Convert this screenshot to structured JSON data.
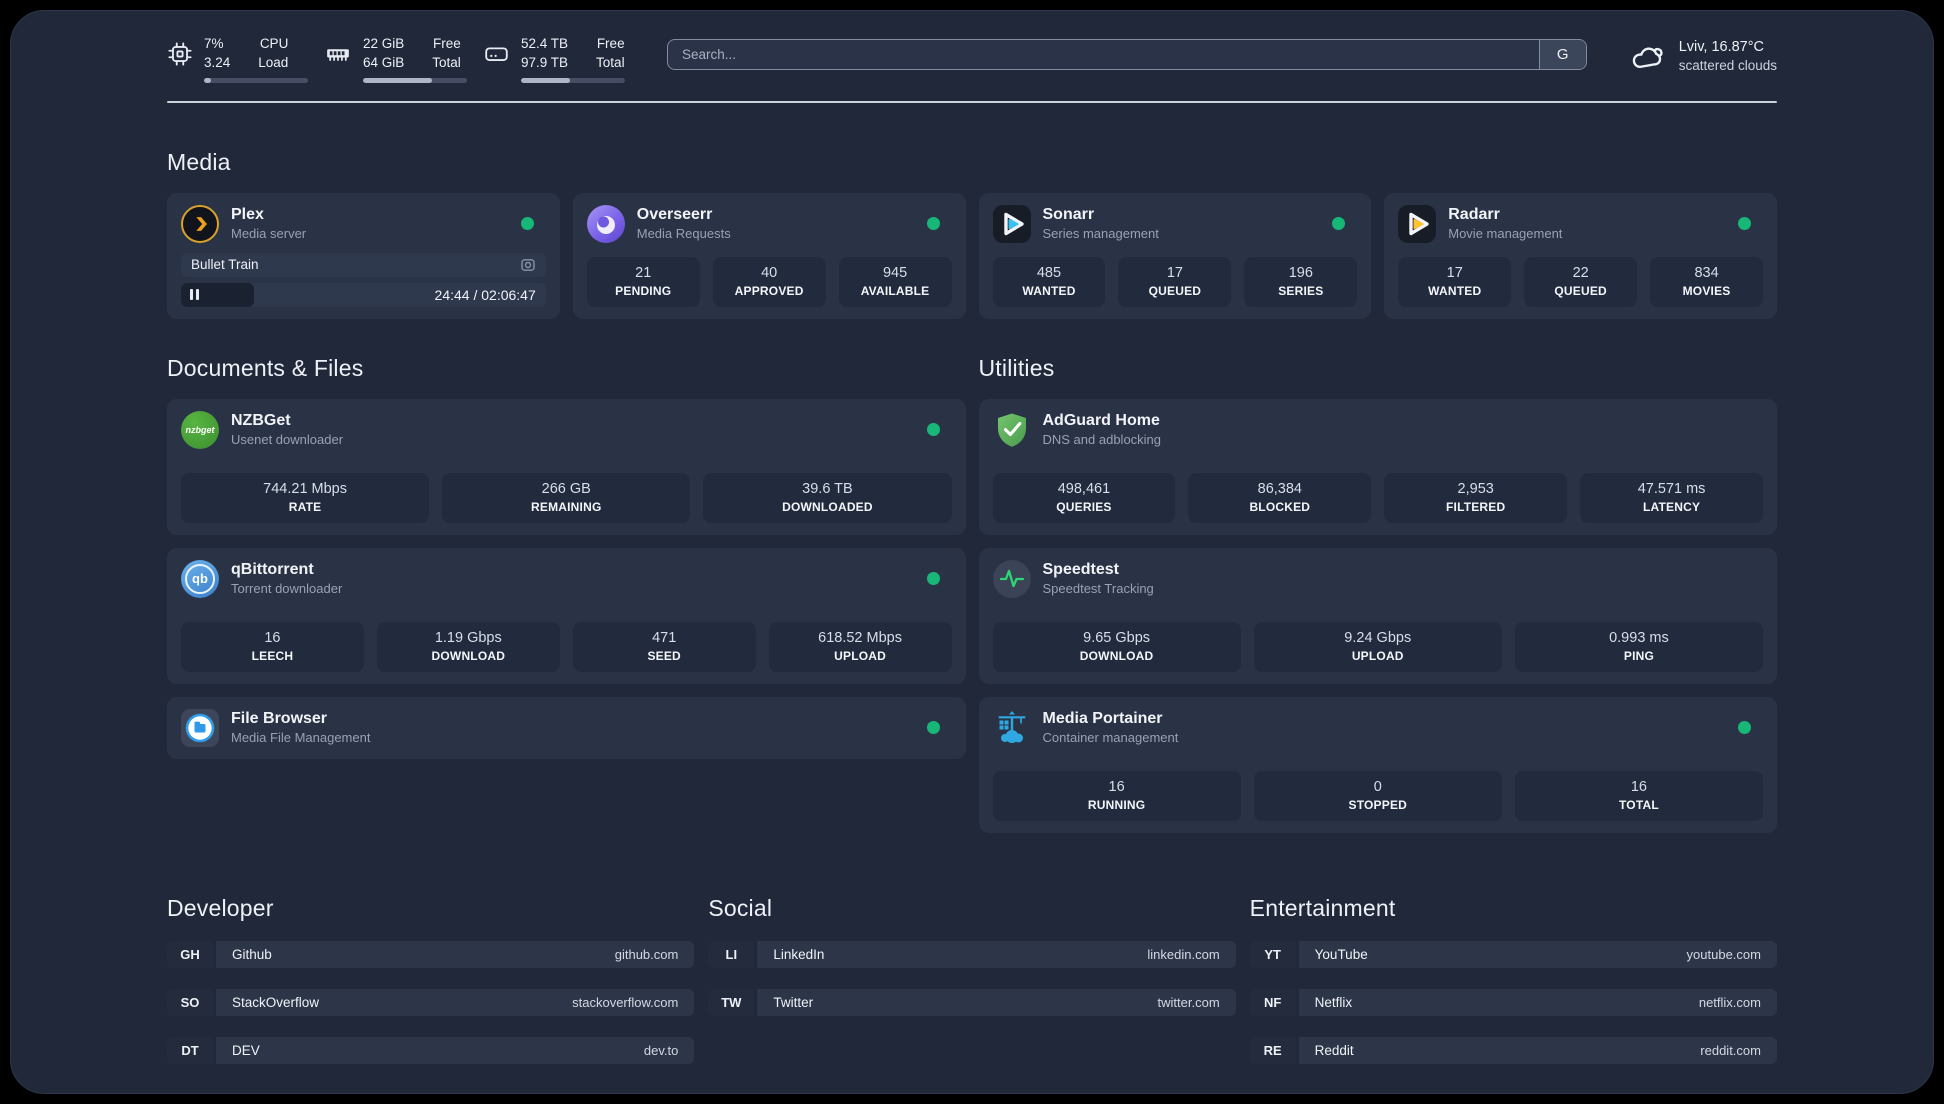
{
  "colors": {
    "accent_green": "#17b877",
    "plex_orange": "#e9a01c",
    "sonarr_blue": "#37c3f1",
    "radarr_yellow": "#ffc230",
    "adguard_green": "#57b45c",
    "portainer_blue": "#2fa8e1",
    "speedtest_green": "#2fd573"
  },
  "header": {
    "cpu": {
      "value_top": "7%",
      "value_bottom": "3.24",
      "label_top": "CPU",
      "label_bottom": "Load",
      "progress_pct": 7
    },
    "ram": {
      "value_top": "22 GiB",
      "value_bottom": "64 GiB",
      "label_top": "Free",
      "label_bottom": "Total",
      "progress_pct": 66
    },
    "disk": {
      "value_top": "52.4 TB",
      "value_bottom": "97.9 TB",
      "label_top": "Free",
      "label_bottom": "Total",
      "progress_pct": 47
    },
    "search": {
      "placeholder": "Search...",
      "button_label": "G"
    },
    "weather": {
      "location": "Lviv, 16.87°C",
      "condition": "scattered clouds"
    }
  },
  "sections": {
    "media": "Media",
    "documents": "Documents & Files",
    "utilities": "Utilities",
    "developer": "Developer",
    "social": "Social",
    "entertainment": "Entertainment"
  },
  "apps": {
    "plex": {
      "name": "Plex",
      "desc": "Media server",
      "now_playing": "Bullet Train",
      "time": "24:44 / 02:06:47",
      "progress_pct": 20
    },
    "overseerr": {
      "name": "Overseerr",
      "desc": "Media Requests",
      "stats": [
        {
          "value": "21",
          "label": "PENDING"
        },
        {
          "value": "40",
          "label": "APPROVED"
        },
        {
          "value": "945",
          "label": "AVAILABLE"
        }
      ]
    },
    "sonarr": {
      "name": "Sonarr",
      "desc": "Series management",
      "stats": [
        {
          "value": "485",
          "label": "WANTED"
        },
        {
          "value": "17",
          "label": "QUEUED"
        },
        {
          "value": "196",
          "label": "SERIES"
        }
      ]
    },
    "radarr": {
      "name": "Radarr",
      "desc": "Movie management",
      "stats": [
        {
          "value": "17",
          "label": "WANTED"
        },
        {
          "value": "22",
          "label": "QUEUED"
        },
        {
          "value": "834",
          "label": "MOVIES"
        }
      ]
    },
    "nzbget": {
      "name": "NZBGet",
      "desc": "Usenet downloader",
      "icon_text": "nzbget",
      "stats": [
        {
          "value": "744.21 Mbps",
          "label": "RATE"
        },
        {
          "value": "266 GB",
          "label": "REMAINING"
        },
        {
          "value": "39.6 TB",
          "label": "DOWNLOADED"
        }
      ]
    },
    "qbittorrent": {
      "name": "qBittorrent",
      "desc": "Torrent downloader",
      "icon_text": "qb",
      "stats": [
        {
          "value": "16",
          "label": "LEECH"
        },
        {
          "value": "1.19 Gbps",
          "label": "DOWNLOAD"
        },
        {
          "value": "471",
          "label": "SEED"
        },
        {
          "value": "618.52 Mbps",
          "label": "UPLOAD"
        }
      ]
    },
    "filebrowser": {
      "name": "File Browser",
      "desc": "Media File Management"
    },
    "adguard": {
      "name": "AdGuard Home",
      "desc": "DNS and adblocking",
      "stats": [
        {
          "value": "498,461",
          "label": "QUERIES"
        },
        {
          "value": "86,384",
          "label": "BLOCKED"
        },
        {
          "value": "2,953",
          "label": "FILTERED"
        },
        {
          "value": "47.571 ms",
          "label": "LATENCY"
        }
      ]
    },
    "speedtest": {
      "name": "Speedtest",
      "desc": "Speedtest Tracking",
      "stats": [
        {
          "value": "9.65 Gbps",
          "label": "DOWNLOAD"
        },
        {
          "value": "9.24 Gbps",
          "label": "UPLOAD"
        },
        {
          "value": "0.993 ms",
          "label": "PING"
        }
      ]
    },
    "portainer": {
      "name": "Media Portainer",
      "desc": "Container management",
      "stats": [
        {
          "value": "16",
          "label": "RUNNING"
        },
        {
          "value": "0",
          "label": "STOPPED"
        },
        {
          "value": "16",
          "label": "TOTAL"
        }
      ]
    }
  },
  "links": {
    "developer": [
      {
        "tag": "GH",
        "name": "Github",
        "url": "github.com"
      },
      {
        "tag": "SO",
        "name": "StackOverflow",
        "url": "stackoverflow.com"
      },
      {
        "tag": "DT",
        "name": "DEV",
        "url": "dev.to"
      }
    ],
    "social": [
      {
        "tag": "LI",
        "name": "LinkedIn",
        "url": "linkedin.com"
      },
      {
        "tag": "TW",
        "name": "Twitter",
        "url": "twitter.com"
      }
    ],
    "entertainment": [
      {
        "tag": "YT",
        "name": "YouTube",
        "url": "youtube.com"
      },
      {
        "tag": "NF",
        "name": "Netflix",
        "url": "netflix.com"
      },
      {
        "tag": "RE",
        "name": "Reddit",
        "url": "reddit.com"
      }
    ]
  }
}
